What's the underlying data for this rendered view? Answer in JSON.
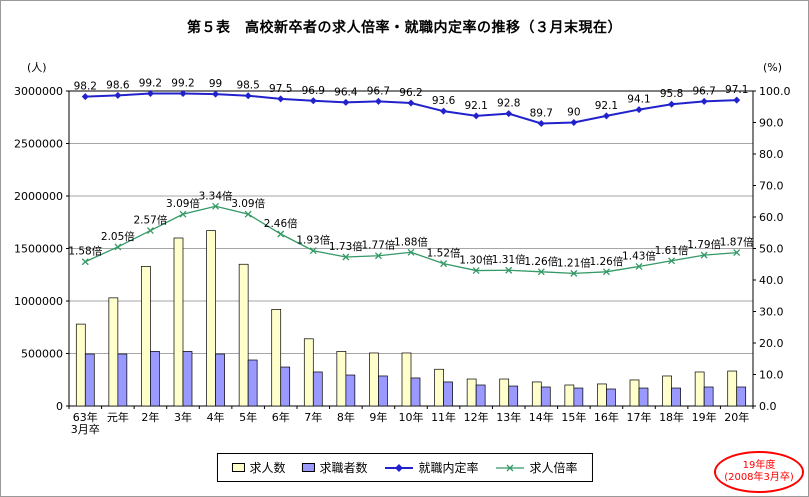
{
  "page": {
    "title": "第５表　高校新卒者の求人倍率・就職内定率の推移（３月末現在）"
  },
  "chart_data": {
    "type": "combo",
    "title": "第５表　高校新卒者の求人倍率・就職内定率の推移（３月末現在）",
    "left_axis": {
      "label": "(人)",
      "min": 0,
      "max": 3000000,
      "tick": 500000
    },
    "right_axis": {
      "label": "(%)",
      "min": 0,
      "max": 100,
      "tick": 10
    },
    "ratio_to_percent": {
      "offset": 30,
      "slope": 10
    },
    "grid": true,
    "legend_position": "bottom",
    "categories": [
      "63年\n3月卒",
      "元年",
      "2年",
      "3年",
      "4年",
      "5年",
      "6年",
      "7年",
      "8年",
      "9年",
      "10年",
      "11年",
      "12年",
      "13年",
      "14年",
      "15年",
      "16年",
      "17年",
      "18年",
      "19年",
      "20年"
    ],
    "series": [
      {
        "name": "求人数",
        "type": "bar",
        "axis": "left",
        "color": "#FFFFCC",
        "values": [
          780000,
          1030000,
          1330000,
          1600000,
          1670000,
          1350000,
          920000,
          640000,
          520000,
          505000,
          505000,
          350000,
          257000,
          257000,
          229000,
          200000,
          210000,
          248000,
          286000,
          324000,
          333000
        ]
      },
      {
        "name": "求職者数",
        "type": "bar",
        "axis": "left",
        "color": "#9999FF",
        "values": [
          495000,
          495000,
          520000,
          520000,
          495000,
          438000,
          371000,
          324000,
          295000,
          286000,
          267000,
          229000,
          200000,
          190000,
          181000,
          171000,
          162000,
          171000,
          171000,
          181000,
          181000
        ]
      },
      {
        "name": "就職内定率",
        "type": "line",
        "axis": "right",
        "color": "#2222CC",
        "marker": "diamond",
        "values": [
          98.2,
          98.6,
          99.2,
          99.2,
          99,
          98.5,
          97.5,
          96.9,
          96.4,
          96.7,
          96.2,
          93.6,
          92.1,
          92.8,
          89.7,
          90,
          92.1,
          94.1,
          95.8,
          96.7,
          97.1
        ],
        "labels": [
          "98.2",
          "98.6",
          "99.2",
          "99.2",
          "99",
          "98.5",
          "97.5",
          "96.9",
          "96.4",
          "96.7",
          "96.2",
          "93.6",
          "92.1",
          "92.8",
          "89.7",
          "90",
          "92.1",
          "94.1",
          "95.8",
          "96.7",
          "97.1"
        ]
      },
      {
        "name": "求人倍率",
        "type": "line",
        "axis": "ratio",
        "color": "#339966",
        "marker": "x",
        "values": [
          1.58,
          2.05,
          2.57,
          3.09,
          3.34,
          3.09,
          2.46,
          1.93,
          1.73,
          1.77,
          1.88,
          1.52,
          1.3,
          1.31,
          1.26,
          1.21,
          1.26,
          1.43,
          1.61,
          1.79,
          1.87
        ],
        "labels": [
          "1.58倍",
          "2.05倍",
          "2.57倍",
          "3.09倍",
          "3.34倍",
          "3.09倍",
          "2.46倍",
          "1.93倍",
          "1.73倍",
          "1.77倍",
          "1.88倍",
          "1.52倍",
          "1.30倍",
          "1.31倍",
          "1.26倍",
          "1.21倍",
          "1.26倍",
          "1.43倍",
          "1.61倍",
          "1.79倍",
          "1.87倍"
        ]
      }
    ],
    "annotation": {
      "line1": "19年度",
      "line2": "(2008年3月卒)",
      "color": "#FF0000"
    }
  }
}
